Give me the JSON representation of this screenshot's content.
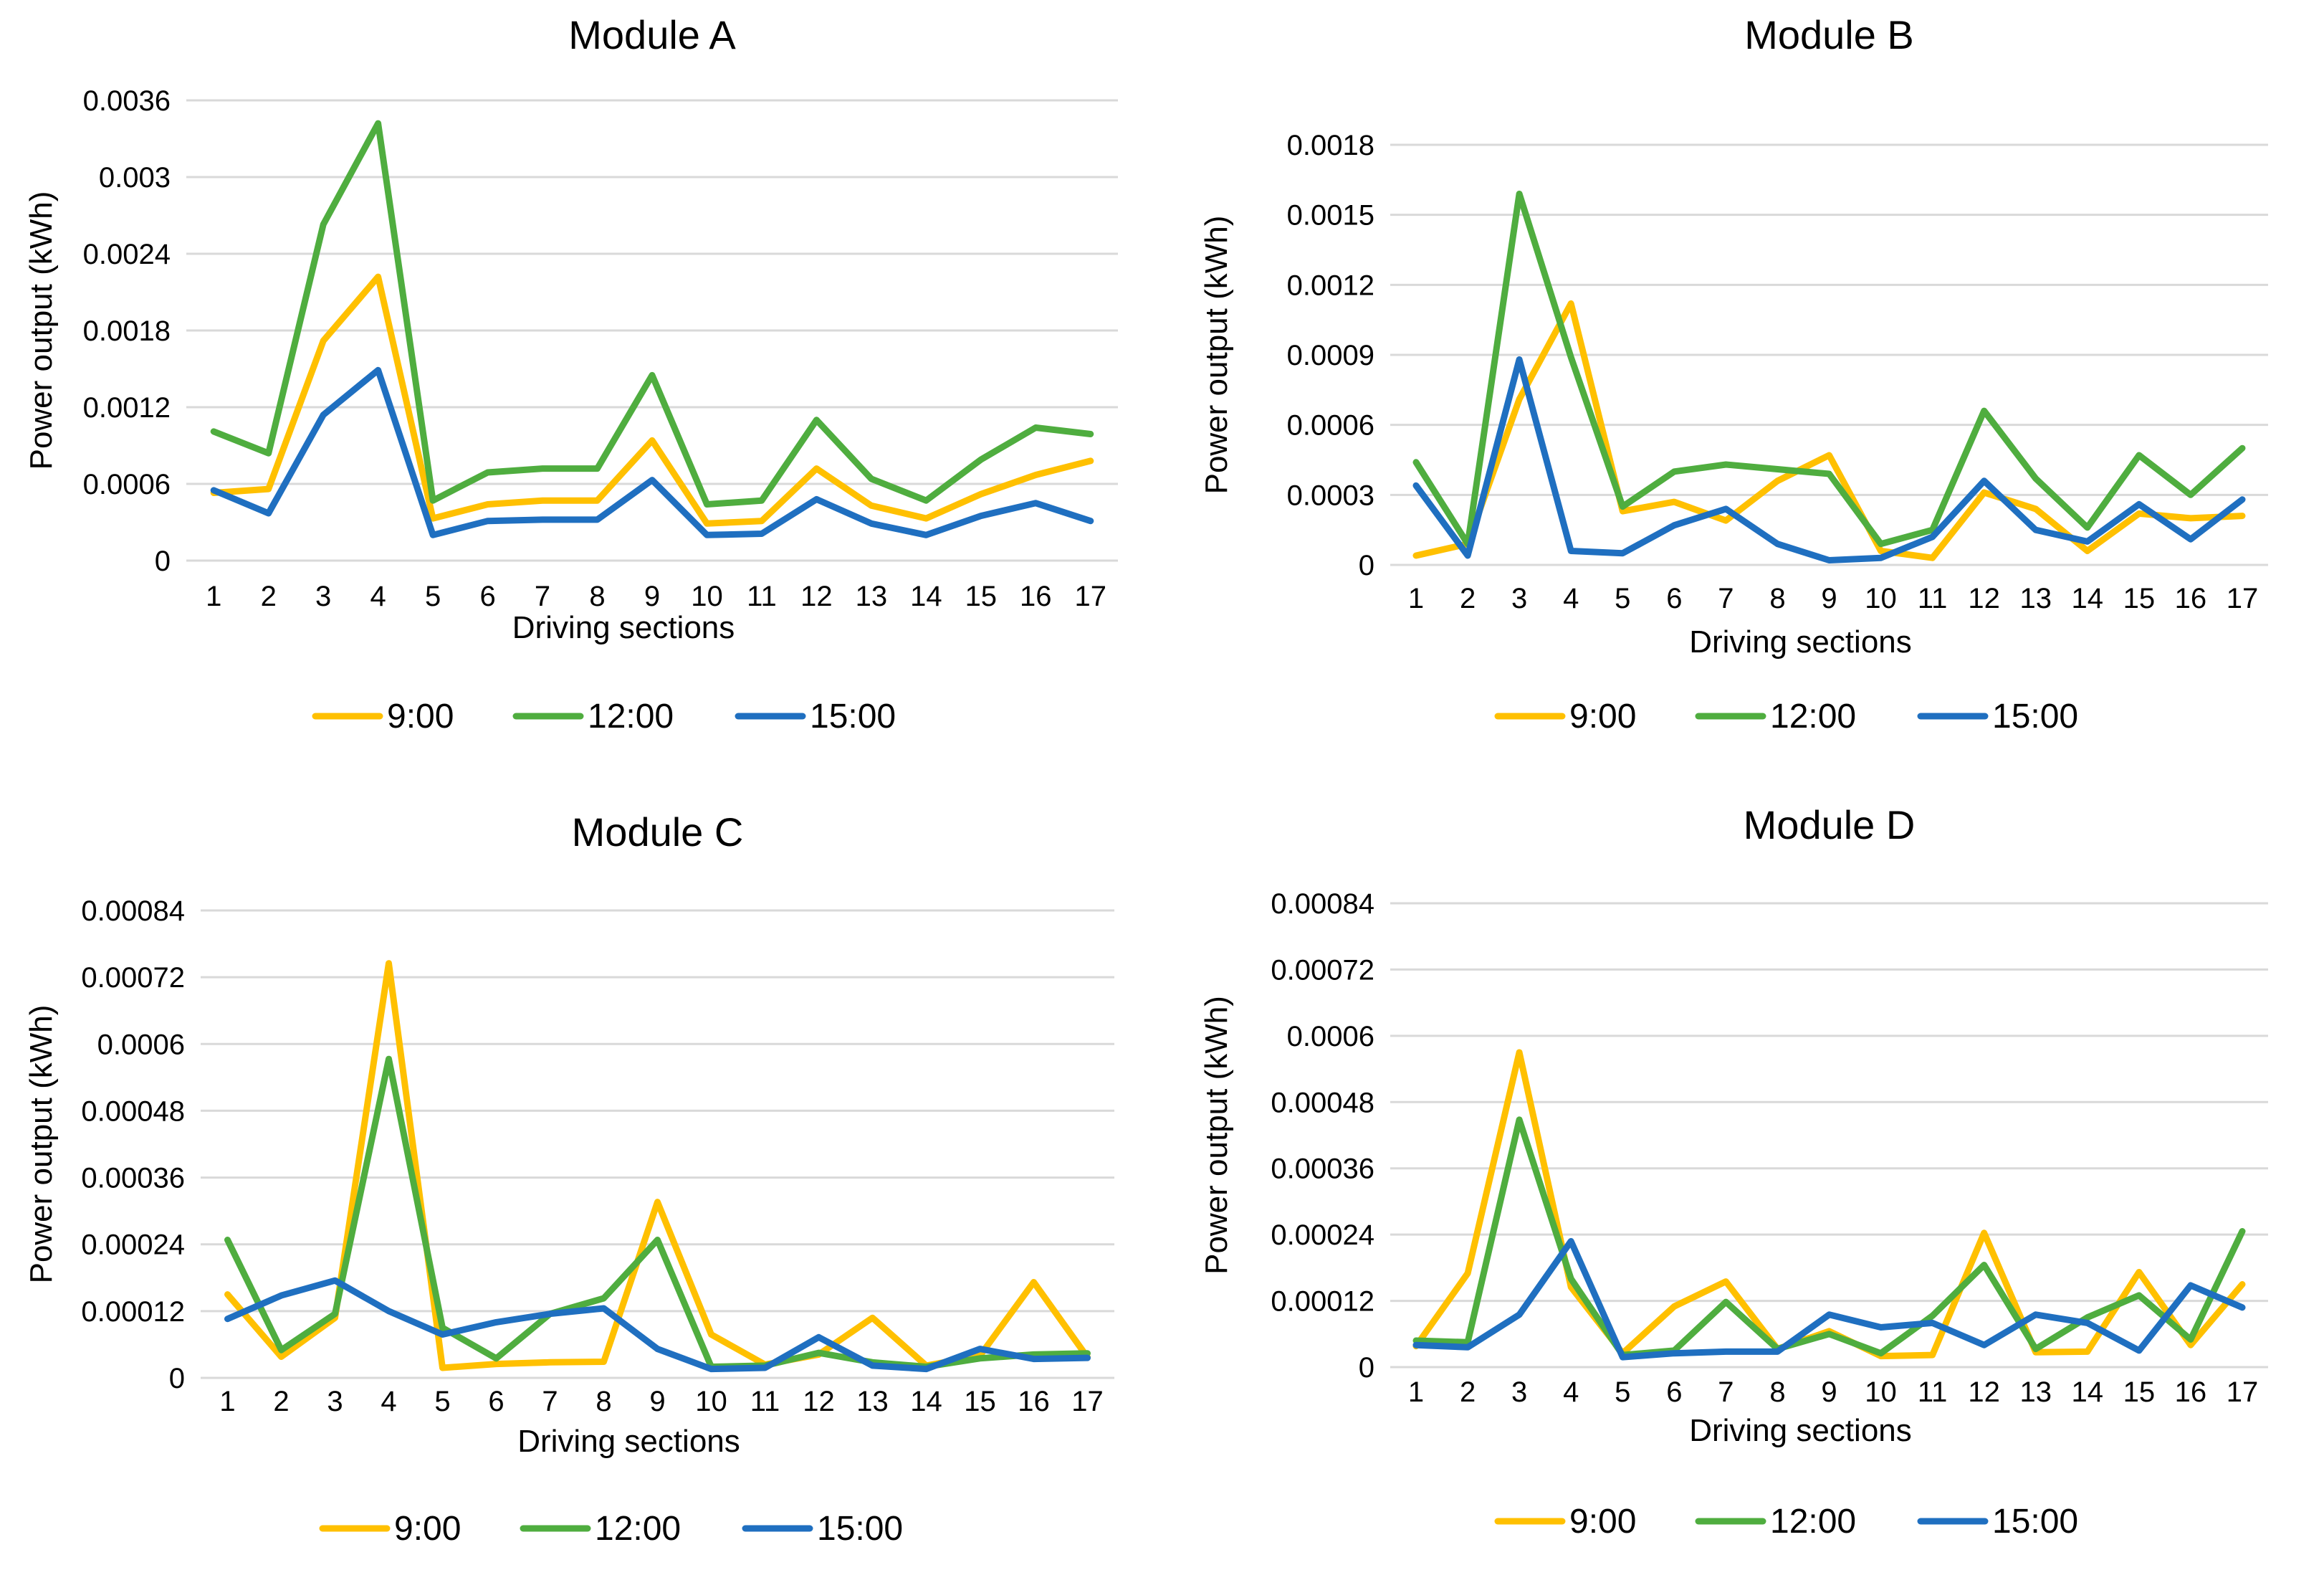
{
  "colors": {
    "s900": "#FFC000",
    "s1200": "#4FAD3F",
    "s1500": "#1F6FC0"
  },
  "chart_data": [
    {
      "type": "line",
      "title": "Module A",
      "xlabel": "Driving sections",
      "ylabel": "Power output (kWh)",
      "categories": [
        "1",
        "2",
        "3",
        "4",
        "5",
        "6",
        "7",
        "8",
        "9",
        "10",
        "11",
        "12",
        "13",
        "14",
        "15",
        "16",
        "17"
      ],
      "yticks": [
        "0",
        "0.0006",
        "0.0012",
        "0.0018",
        "0.0024",
        "0.003",
        "0.0036"
      ],
      "ylim": [
        0,
        0.0036
      ],
      "series": [
        {
          "name": "9:00",
          "values": [
            0.00053,
            0.00056,
            0.00172,
            0.00222,
            0.00033,
            0.00044,
            0.00047,
            0.00047,
            0.00094,
            0.00029,
            0.00031,
            0.00072,
            0.00043,
            0.00033,
            0.00052,
            0.00067,
            0.00078
          ]
        },
        {
          "name": "12:00",
          "values": [
            0.00101,
            0.00084,
            0.00263,
            0.00342,
            0.00047,
            0.00069,
            0.00072,
            0.00072,
            0.00145,
            0.00044,
            0.00047,
            0.0011,
            0.00064,
            0.00047,
            0.00079,
            0.00104,
            0.00099
          ]
        },
        {
          "name": "15:00",
          "values": [
            0.00055,
            0.00037,
            0.00114,
            0.00149,
            0.0002,
            0.00031,
            0.00032,
            0.00032,
            0.00063,
            0.0002,
            0.00021,
            0.00048,
            0.00029,
            0.0002,
            0.00035,
            0.00045,
            0.00031
          ]
        }
      ]
    },
    {
      "type": "line",
      "title": "Module B",
      "xlabel": "Driving sections",
      "ylabel": "Power output (kWh)",
      "categories": [
        "1",
        "2",
        "3",
        "4",
        "5",
        "6",
        "7",
        "8",
        "9",
        "10",
        "11",
        "12",
        "13",
        "14",
        "15",
        "16",
        "17"
      ],
      "yticks": [
        "0",
        "0.0003",
        "0.0006",
        "0.0009",
        "0.0012",
        "0.0015",
        "0.0018"
      ],
      "ylim": [
        0,
        0.0018
      ],
      "series": [
        {
          "name": "9:00",
          "values": [
            4e-05,
            9e-05,
            0.00071,
            0.00112,
            0.00023,
            0.00027,
            0.00019,
            0.00036,
            0.00047,
            6e-05,
            3e-05,
            0.00031,
            0.00024,
            6e-05,
            0.00022,
            0.0002,
            0.00021
          ]
        },
        {
          "name": "12:00",
          "values": [
            0.00044,
            9e-05,
            0.00159,
            0.00089,
            0.00025,
            0.0004,
            0.00043,
            0.00041,
            0.00039,
            9e-05,
            0.00015,
            0.00066,
            0.00037,
            0.00016,
            0.00047,
            0.0003,
            0.0005
          ]
        },
        {
          "name": "15:00",
          "values": [
            0.00034,
            4e-05,
            0.00088,
            6e-05,
            5e-05,
            0.00017,
            0.00024,
            9e-05,
            2e-05,
            3e-05,
            0.00012,
            0.00036,
            0.00015,
            0.0001,
            0.00026,
            0.00011,
            0.00028
          ]
        }
      ]
    },
    {
      "type": "line",
      "title": "Module C",
      "xlabel": "Driving sections",
      "ylabel": "Power output (kWh)",
      "categories": [
        "1",
        "2",
        "3",
        "4",
        "5",
        "6",
        "7",
        "8",
        "9",
        "10",
        "11",
        "12",
        "13",
        "14",
        "15",
        "16",
        "17"
      ],
      "yticks": [
        "0",
        "0.00012",
        "0.00024",
        "0.00036",
        "0.00048",
        "0.0006",
        "0.00072",
        "0.00084"
      ],
      "ylim": [
        0,
        0.00084
      ],
      "series": [
        {
          "name": "9:00",
          "values": [
            0.00015,
            3.8e-05,
            0.000108,
            0.000745,
            1.8e-05,
            2.5e-05,
            2.8e-05,
            2.9e-05,
            0.000316,
            7.8e-05,
            2.4e-05,
            4.2e-05,
            0.000108,
            2.2e-05,
            4e-05,
            0.000172,
            3.7e-05
          ]
        },
        {
          "name": "12:00",
          "values": [
            0.000248,
            5e-05,
            0.000115,
            0.000573,
            9e-05,
            3.5e-05,
            0.000115,
            0.000143,
            0.000248,
            2e-05,
            2.2e-05,
            4.5e-05,
            2.8e-05,
            2e-05,
            3.5e-05,
            4.2e-05,
            4.4e-05
          ]
        },
        {
          "name": "15:00",
          "values": [
            0.000106,
            0.000148,
            0.000175,
            0.00012,
            7.8e-05,
            0.0001,
            0.000115,
            0.000125,
            5.2e-05,
            1.6e-05,
            1.8e-05,
            7.3e-05,
            2.2e-05,
            1.6e-05,
            5.2e-05,
            3.4e-05,
            3.6e-05
          ]
        }
      ]
    },
    {
      "type": "line",
      "title": "Module D",
      "xlabel": "Driving sections",
      "ylabel": "Power output (kWh)",
      "categories": [
        "1",
        "2",
        "3",
        "4",
        "5",
        "6",
        "7",
        "8",
        "9",
        "10",
        "11",
        "12",
        "13",
        "14",
        "15",
        "16",
        "17"
      ],
      "yticks": [
        "0",
        "0.00012",
        "0.00024",
        "0.00036",
        "0.00048",
        "0.0006",
        "0.00072",
        "0.00084"
      ],
      "ylim": [
        0,
        0.00084
      ],
      "series": [
        {
          "name": "9:00",
          "values": [
            3.8e-05,
            0.00017,
            0.00057,
            0.000145,
            2.5e-05,
            0.00011,
            0.000155,
            3.3e-05,
            6.5e-05,
            2e-05,
            2.2e-05,
            0.000243,
            2.7e-05,
            2.8e-05,
            0.000172,
            4e-05,
            0.00015
          ]
        },
        {
          "name": "12:00",
          "values": [
            4.8e-05,
            4.5e-05,
            0.000448,
            0.00016,
            2.2e-05,
            3e-05,
            0.000118,
            3.3e-05,
            6e-05,
            2.5e-05,
            9.3e-05,
            0.000185,
            3.3e-05,
            9e-05,
            0.00013,
            5e-05,
            0.000246
          ]
        },
        {
          "name": "15:00",
          "values": [
            4e-05,
            3.6e-05,
            9.5e-05,
            0.000228,
            1.8e-05,
            2.5e-05,
            2.8e-05,
            2.8e-05,
            9.5e-05,
            7.2e-05,
            8e-05,
            4e-05,
            9.5e-05,
            8e-05,
            3e-05,
            0.000148,
            0.000108
          ]
        }
      ]
    }
  ]
}
